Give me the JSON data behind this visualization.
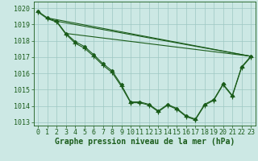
{
  "background_color": "#cce8e4",
  "grid_color": "#9ec8c2",
  "line_color": "#1a5c1a",
  "marker_color": "#1a5c1a",
  "xlabel": "Graphe pression niveau de la mer (hPa)",
  "xlabel_fontsize": 7,
  "tick_fontsize": 6,
  "ylim": [
    1012.8,
    1020.4
  ],
  "xlim": [
    -0.5,
    23.5
  ],
  "yticks": [
    1013,
    1014,
    1015,
    1016,
    1017,
    1018,
    1019,
    1020
  ],
  "xticks": [
    0,
    1,
    2,
    3,
    4,
    5,
    6,
    7,
    8,
    9,
    10,
    11,
    12,
    13,
    14,
    15,
    16,
    17,
    18,
    19,
    20,
    21,
    22,
    23
  ],
  "series": [
    {
      "name": "line_with_diamonds",
      "x": [
        0,
        1,
        2,
        3,
        4,
        5,
        6,
        7,
        8,
        9,
        10,
        11,
        12,
        13,
        14,
        15,
        16,
        17,
        18,
        19,
        20,
        21,
        22,
        23
      ],
      "y": [
        1019.8,
        1019.4,
        1019.2,
        1018.45,
        1017.95,
        1017.65,
        1017.15,
        1016.6,
        1016.15,
        1015.3,
        1014.25,
        1014.25,
        1014.1,
        1013.7,
        1014.1,
        1013.85,
        1013.4,
        1013.2,
        1014.1,
        1014.4,
        1015.35,
        1014.65,
        1016.4,
        1017.05
      ],
      "marker": "D",
      "markersize": 2.0,
      "linewidth": 0.8
    },
    {
      "name": "line_with_plus",
      "x": [
        0,
        1,
        2,
        3,
        4,
        5,
        6,
        7,
        8,
        9,
        10,
        11,
        12,
        13,
        14,
        15,
        16,
        17,
        18,
        19,
        20,
        21,
        22,
        23
      ],
      "y": [
        1019.75,
        1019.35,
        1019.15,
        1018.4,
        1017.85,
        1017.55,
        1017.05,
        1016.5,
        1016.05,
        1015.2,
        1014.2,
        1014.2,
        1014.05,
        1013.65,
        1014.05,
        1013.8,
        1013.35,
        1013.15,
        1014.05,
        1014.35,
        1015.3,
        1014.6,
        1016.35,
        1017.0
      ],
      "marker": "+",
      "markersize": 4.5,
      "linewidth": 0.8
    },
    {
      "name": "straight_line",
      "x": [
        1,
        23
      ],
      "y": [
        1019.4,
        1017.05
      ],
      "marker": null,
      "linewidth": 0.8
    },
    {
      "name": "straight_line2",
      "x": [
        2,
        23
      ],
      "y": [
        1019.2,
        1017.05
      ],
      "marker": null,
      "linewidth": 0.8
    },
    {
      "name": "straight_line3",
      "x": [
        3,
        23
      ],
      "y": [
        1018.45,
        1017.05
      ],
      "marker": null,
      "linewidth": 0.8
    }
  ]
}
